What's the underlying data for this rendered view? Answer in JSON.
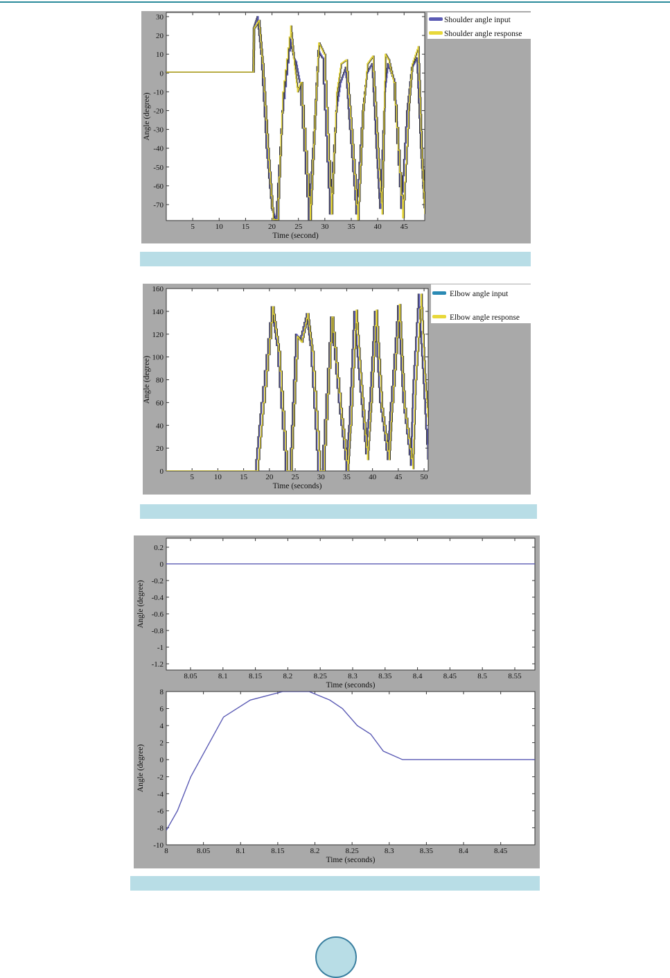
{
  "colors": {
    "input_line": "#5a5ab4",
    "response_line": "#e8d83a",
    "dark_step": "#333333",
    "panel_bg": "#a9a9a9",
    "caption_bg": "#b8dde6",
    "page_circle": "#b8dde6"
  },
  "chart_data": [
    {
      "type": "line",
      "xlabel": "Time (second)",
      "ylabel": "Angle (degree)",
      "xlim": [
        0,
        48.9
      ],
      "ylim": [
        -78.5,
        32.2
      ],
      "xticks": [
        5,
        10,
        15,
        20,
        25,
        30,
        35,
        40,
        45
      ],
      "yticks": [
        30,
        20,
        10,
        0,
        -10,
        -20,
        -30,
        -40,
        -50,
        -60,
        -70
      ],
      "grid": false,
      "legend_position": "outside-top-right",
      "series": [
        {
          "name": "Shoulder angle input",
          "color": "#5a5ab4",
          "x": [
            0,
            16.5,
            16.6,
            17.3,
            18,
            19,
            20,
            20.8,
            22,
            23.5,
            24.2,
            24.6,
            25.3,
            27,
            27.8,
            28.8,
            29.6,
            31,
            32.2,
            33,
            34,
            34.8,
            36,
            37.2,
            38,
            39,
            39.8,
            40.5,
            41.4,
            42,
            43,
            44.5,
            45.6,
            46.5,
            47.5,
            48.2,
            48.9
          ],
          "y": [
            0.5,
            0.5,
            24,
            30,
            10,
            -40,
            -72,
            -78,
            -20,
            18,
            8,
            6,
            -5,
            -78,
            -40,
            12,
            8,
            -75,
            -20,
            -5,
            3,
            -30,
            -75,
            -20,
            0,
            5,
            -40,
            -72,
            -10,
            5,
            -3,
            -72,
            -20,
            3,
            8,
            -40,
            -72
          ]
        },
        {
          "name": "Shoulder angle response",
          "color": "#e8d83a",
          "x": [
            0,
            16.5,
            16.6,
            17.5,
            18.2,
            19.2,
            20.2,
            21,
            22,
            23.5,
            24.2,
            24.8,
            25.4,
            27.2,
            28,
            28.8,
            29.8,
            31.2,
            32.2,
            33,
            34,
            35,
            36.2,
            37.2,
            38,
            39,
            40,
            40.8,
            41.4,
            42,
            43,
            44.7,
            45.8,
            46.5,
            47.6,
            48.3,
            48.9
          ],
          "y": [
            0.5,
            0.5,
            24,
            28,
            5,
            -40,
            -78,
            -78,
            -10,
            25,
            4,
            -10,
            -5,
            -78,
            -30,
            16,
            10,
            -75,
            -10,
            5,
            7,
            -30,
            -78,
            -20,
            5,
            9,
            -40,
            -75,
            10,
            7,
            -5,
            -77,
            -20,
            5,
            14,
            -40,
            -75
          ]
        }
      ]
    },
    {
      "type": "line",
      "xlabel": "Time (seconds)",
      "ylabel": "Angle (degree)",
      "xlim": [
        0,
        50.8
      ],
      "ylim": [
        0,
        160
      ],
      "xticks": [
        5,
        10,
        15,
        20,
        25,
        30,
        35,
        40,
        45,
        50
      ],
      "yticks": [
        160,
        140,
        120,
        100,
        80,
        60,
        40,
        20,
        0
      ],
      "grid": false,
      "legend_position": "outside-top-right",
      "series": [
        {
          "name": "Elbow angle input",
          "color": "#5a5ab4",
          "x": [
            0,
            17.3,
            18.5,
            20.5,
            21.5,
            23.2,
            24,
            25.2,
            26,
            27.3,
            28,
            29.5,
            30.2,
            32,
            33.5,
            35,
            35.5,
            36.5,
            37.5,
            38.8,
            39.5,
            40.5,
            41.5,
            43,
            43.6,
            45,
            46,
            47.5,
            48,
            49,
            49.8,
            50.8
          ],
          "y": [
            0,
            0,
            60,
            144,
            110,
            0,
            0,
            120,
            115,
            138,
            110,
            0,
            0,
            135,
            60,
            0,
            40,
            140,
            80,
            15,
            60,
            140,
            60,
            10,
            60,
            145,
            60,
            5,
            80,
            155,
            90,
            10
          ]
        },
        {
          "name": "Elbow angle response",
          "color": "#e8d83a",
          "x": [
            0,
            17.6,
            18.8,
            20.6,
            21.8,
            23.4,
            24.1,
            25.4,
            26.2,
            27.4,
            28.3,
            29.8,
            30.4,
            32.1,
            33.8,
            35.2,
            35.7,
            36.8,
            37.8,
            39,
            39.7,
            40.7,
            41.8,
            43.2,
            43.8,
            45.2,
            46.2,
            47.8,
            48.3,
            49.4,
            50.1,
            50.8
          ],
          "y": [
            0,
            0,
            60,
            144,
            105,
            0,
            0,
            118,
            113,
            138,
            105,
            0,
            0,
            135,
            55,
            0,
            40,
            141,
            75,
            10,
            60,
            141,
            55,
            10,
            60,
            146,
            55,
            2,
            80,
            155,
            85,
            40
          ]
        }
      ]
    },
    {
      "type": "line",
      "xlabel": "Time (seconds)",
      "ylabel": "Angle (degree)",
      "xlim": [
        8.0126,
        8.581
      ],
      "ylim": [
        -1.275,
        0.308
      ],
      "xticks": [
        8.05,
        8.1,
        8.15,
        8.2,
        8.25,
        8.3,
        8.35,
        8.4,
        8.45,
        8.5,
        8.55
      ],
      "yticks": [
        0.2,
        0,
        -0.2,
        -0.4,
        -0.6,
        -0.8,
        -1,
        -1.2
      ],
      "grid": false,
      "series": [
        {
          "color": "#5a5ab4",
          "x": [
            8.0126,
            8.581
          ],
          "y": [
            0,
            0
          ]
        }
      ]
    },
    {
      "type": "line",
      "xlabel": "Time (seconds)",
      "ylabel": "Angle (degree)",
      "xlim": [
        8,
        8.496
      ],
      "ylim": [
        -10,
        8
      ],
      "xticks": [
        8,
        8.05,
        8.1,
        8.15,
        8.2,
        8.25,
        8.3,
        8.35,
        8.4,
        8.45
      ],
      "yticks": [
        8,
        6,
        4,
        2,
        0,
        -2,
        -4,
        -6,
        -8,
        -10
      ],
      "grid": false,
      "series": [
        {
          "color": "#5a5ab4",
          "x": [
            8,
            8.015,
            8.033,
            8.077,
            8.113,
            8.157,
            8.192,
            8.22,
            8.237,
            8.257,
            8.275,
            8.292,
            8.318,
            8.496
          ],
          "y": [
            -8.3,
            -6,
            -2,
            5,
            7,
            8,
            8,
            7,
            6,
            4,
            3,
            1,
            0,
            0
          ]
        }
      ]
    }
  ]
}
